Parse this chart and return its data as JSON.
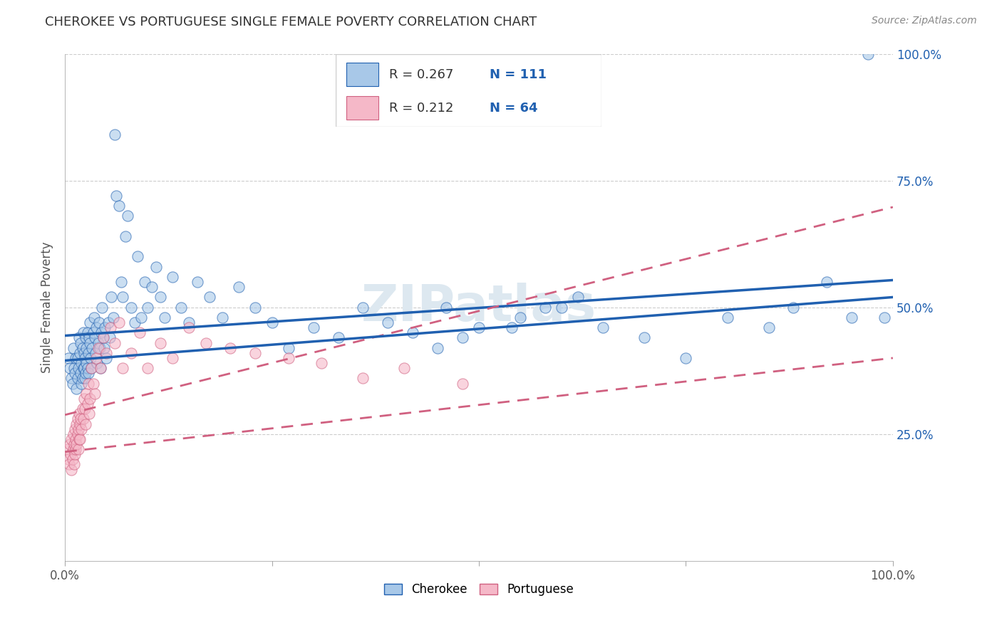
{
  "title": "CHEROKEE VS PORTUGUESE SINGLE FEMALE POVERTY CORRELATION CHART",
  "source": "Source: ZipAtlas.com",
  "ylabel": "Single Female Poverty",
  "legend_label1": "Cherokee",
  "legend_label2": "Portuguese",
  "r1": 0.267,
  "n1": 111,
  "r2": 0.212,
  "n2": 64,
  "cherokee_color": "#a8c8e8",
  "portuguese_color": "#f5b8c8",
  "line1_color": "#2060b0",
  "line2_color": "#d06080",
  "watermark_color": "#dde8f0",
  "cherokee_x": [
    0.004,
    0.006,
    0.008,
    0.009,
    0.01,
    0.011,
    0.012,
    0.013,
    0.014,
    0.015,
    0.015,
    0.016,
    0.017,
    0.018,
    0.019,
    0.019,
    0.02,
    0.02,
    0.021,
    0.021,
    0.022,
    0.022,
    0.023,
    0.023,
    0.024,
    0.024,
    0.025,
    0.025,
    0.026,
    0.026,
    0.027,
    0.027,
    0.028,
    0.028,
    0.029,
    0.03,
    0.03,
    0.031,
    0.032,
    0.033,
    0.034,
    0.035,
    0.036,
    0.037,
    0.038,
    0.039,
    0.04,
    0.041,
    0.042,
    0.043,
    0.044,
    0.045,
    0.046,
    0.047,
    0.048,
    0.05,
    0.052,
    0.054,
    0.056,
    0.058,
    0.06,
    0.062,
    0.065,
    0.068,
    0.07,
    0.073,
    0.076,
    0.08,
    0.084,
    0.088,
    0.092,
    0.096,
    0.1,
    0.105,
    0.11,
    0.115,
    0.12,
    0.13,
    0.14,
    0.15,
    0.16,
    0.175,
    0.19,
    0.21,
    0.23,
    0.25,
    0.27,
    0.3,
    0.33,
    0.36,
    0.39,
    0.42,
    0.45,
    0.5,
    0.55,
    0.6,
    0.65,
    0.7,
    0.75,
    0.8,
    0.85,
    0.88,
    0.92,
    0.95,
    0.97,
    0.99,
    0.62,
    0.58,
    0.54,
    0.48,
    0.46
  ],
  "cherokee_y": [
    0.4,
    0.38,
    0.36,
    0.35,
    0.42,
    0.38,
    0.37,
    0.4,
    0.34,
    0.36,
    0.4,
    0.38,
    0.44,
    0.41,
    0.37,
    0.43,
    0.35,
    0.39,
    0.36,
    0.42,
    0.38,
    0.45,
    0.41,
    0.38,
    0.36,
    0.4,
    0.44,
    0.37,
    0.42,
    0.39,
    0.45,
    0.38,
    0.41,
    0.37,
    0.44,
    0.43,
    0.47,
    0.4,
    0.38,
    0.42,
    0.45,
    0.48,
    0.44,
    0.41,
    0.46,
    0.39,
    0.43,
    0.47,
    0.42,
    0.38,
    0.45,
    0.5,
    0.44,
    0.42,
    0.46,
    0.4,
    0.47,
    0.44,
    0.52,
    0.48,
    0.84,
    0.72,
    0.7,
    0.55,
    0.52,
    0.64,
    0.68,
    0.5,
    0.47,
    0.6,
    0.48,
    0.55,
    0.5,
    0.54,
    0.58,
    0.52,
    0.48,
    0.56,
    0.5,
    0.47,
    0.55,
    0.52,
    0.48,
    0.54,
    0.5,
    0.47,
    0.42,
    0.46,
    0.44,
    0.5,
    0.47,
    0.45,
    0.42,
    0.46,
    0.48,
    0.5,
    0.46,
    0.44,
    0.4,
    0.48,
    0.46,
    0.5,
    0.55,
    0.48,
    1.0,
    0.48,
    0.52,
    0.5,
    0.46,
    0.44,
    0.5
  ],
  "portuguese_x": [
    0.003,
    0.004,
    0.005,
    0.006,
    0.007,
    0.008,
    0.008,
    0.009,
    0.01,
    0.01,
    0.011,
    0.011,
    0.012,
    0.012,
    0.013,
    0.013,
    0.014,
    0.014,
    0.015,
    0.015,
    0.016,
    0.016,
    0.017,
    0.017,
    0.018,
    0.018,
    0.019,
    0.02,
    0.021,
    0.022,
    0.023,
    0.024,
    0.025,
    0.026,
    0.027,
    0.028,
    0.029,
    0.03,
    0.032,
    0.034,
    0.036,
    0.038,
    0.04,
    0.043,
    0.046,
    0.05,
    0.055,
    0.06,
    0.065,
    0.07,
    0.08,
    0.09,
    0.1,
    0.115,
    0.13,
    0.15,
    0.17,
    0.2,
    0.23,
    0.27,
    0.31,
    0.36,
    0.41,
    0.48
  ],
  "portuguese_y": [
    0.22,
    0.2,
    0.19,
    0.23,
    0.21,
    0.18,
    0.24,
    0.2,
    0.22,
    0.25,
    0.19,
    0.23,
    0.21,
    0.26,
    0.24,
    0.22,
    0.27,
    0.23,
    0.25,
    0.28,
    0.22,
    0.26,
    0.24,
    0.29,
    0.27,
    0.24,
    0.28,
    0.26,
    0.3,
    0.28,
    0.32,
    0.3,
    0.27,
    0.33,
    0.31,
    0.35,
    0.29,
    0.32,
    0.38,
    0.35,
    0.33,
    0.4,
    0.42,
    0.38,
    0.44,
    0.41,
    0.46,
    0.43,
    0.47,
    0.38,
    0.41,
    0.45,
    0.38,
    0.43,
    0.4,
    0.46,
    0.43,
    0.42,
    0.41,
    0.4,
    0.39,
    0.36,
    0.38,
    0.35
  ],
  "xlim": [
    0,
    1
  ],
  "ylim": [
    0,
    1
  ],
  "yticks": [
    0.25,
    0.5,
    0.75,
    1.0
  ],
  "ytick_labels": [
    "25.0%",
    "50.0%",
    "75.0%",
    "100.0%"
  ],
  "xtick_positions": [
    0,
    1
  ],
  "xtick_labels": [
    "0.0%",
    "100.0%"
  ]
}
